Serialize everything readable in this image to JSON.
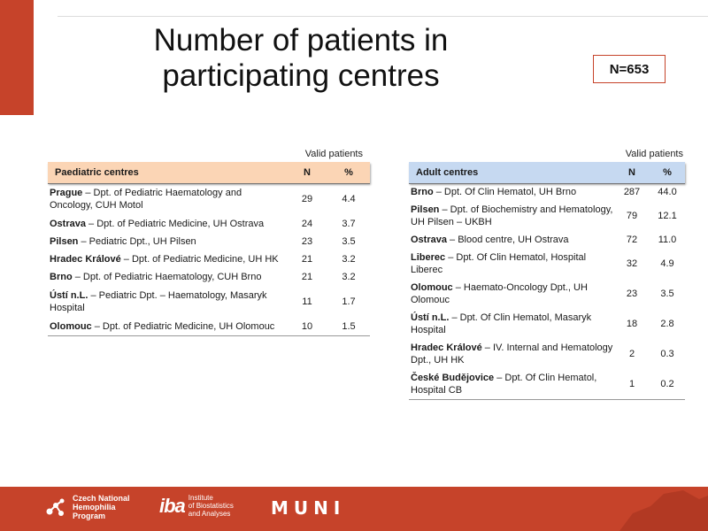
{
  "slide": {
    "title": "Number of patients in participating centres",
    "total_badge": "N=653",
    "colors": {
      "accent": "#c6432a",
      "paediatric_header": "#fbd5b5",
      "adult_header": "#c6d9f1"
    }
  },
  "paediatric": {
    "valid_label": "Valid patients",
    "headers": {
      "name": "Paediatric centres",
      "n": "N",
      "pct": "%"
    },
    "rows": [
      {
        "city": "Prague",
        "dept": " – Dpt. of Pediatric Haematology and Oncology, CUH Motol",
        "n": "29",
        "pct": "4.4"
      },
      {
        "city": "Ostrava",
        "dept": " – Dpt. of Pediatric Medicine, UH Ostrava",
        "n": "24",
        "pct": "3.7"
      },
      {
        "city": "Pilsen",
        "dept": " – Pediatric Dpt., UH Pilsen",
        "n": "23",
        "pct": "3.5"
      },
      {
        "city": "Hradec Králové",
        "dept": " – Dpt. of Pediatric Medicine, UH HK",
        "n": "21",
        "pct": "3.2"
      },
      {
        "city": "Brno",
        "dept": " – Dpt. of Pediatric Haematology, CUH Brno",
        "n": "21",
        "pct": "3.2"
      },
      {
        "city": "Ústí n.L.",
        "dept": " – Pediatric Dpt. – Haematology, Masaryk Hospital",
        "n": "11",
        "pct": "1.7"
      },
      {
        "city": "Olomouc",
        "dept": " – Dpt. of Pediatric Medicine, UH Olomouc",
        "n": "10",
        "pct": "1.5"
      }
    ]
  },
  "adult": {
    "valid_label": "Valid patients",
    "headers": {
      "name": "Adult centres",
      "n": "N",
      "pct": "%"
    },
    "rows": [
      {
        "city": "Brno",
        "dept": " – Dpt. Of Clin Hematol, UH Brno",
        "n": "287",
        "pct": "44.0"
      },
      {
        "city": "Pilsen",
        "dept": " – Dpt. of Biochemistry and Hematology, UH Pilsen – UKBH",
        "n": "79",
        "pct": "12.1"
      },
      {
        "city": "Ostrava",
        "dept": " – Blood centre, UH Ostrava",
        "n": "72",
        "pct": "11.0"
      },
      {
        "city": "Liberec",
        "dept": " – Dpt. Of Clin Hematol, Hospital Liberec",
        "n": "32",
        "pct": "4.9"
      },
      {
        "city": "Olomouc",
        "dept": " – Haemato-Oncology Dpt., UH Olomouc",
        "n": "23",
        "pct": "3.5"
      },
      {
        "city": "Ústí n.L.",
        "dept": " – Dpt. Of Clin Hematol, Masaryk Hospital",
        "n": "18",
        "pct": "2.8"
      },
      {
        "city": "Hradec Králové",
        "dept": " – IV. Internal and Hematology Dpt., UH HK",
        "n": "2",
        "pct": "0.3"
      },
      {
        "city": "České Budějovice",
        "dept": " – Dpt. Of Clin Hematol, Hospital CB",
        "n": "1",
        "pct": "0.2"
      }
    ]
  },
  "footer": {
    "chp_lines": [
      "Czech National",
      "Hemophilia",
      "Program"
    ],
    "iba_mark": "iba",
    "iba_lines": [
      "Institute",
      "of Biostatistics",
      "and Analyses"
    ],
    "muni": "MUNI",
    "icons": [
      "molecule-icon",
      "iba-logo-icon",
      "czech-map-icon"
    ]
  }
}
